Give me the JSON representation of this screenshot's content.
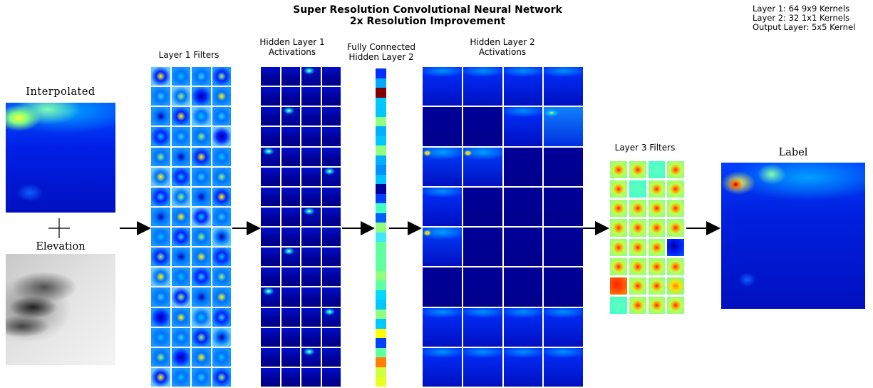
{
  "title": {
    "line1": "Super Resolution Convolutional Neural Network",
    "line2": "2x Resolution Improvement"
  },
  "legend": {
    "line1": "Layer 1: 64 9x9 Kernels",
    "line2": "Layer 2: 32 1x1 Kernels",
    "line3": "Output Layer: 5x5 Kernel"
  },
  "inputs": {
    "interpolated": "Interpolated",
    "plus": "+",
    "elevation": "Elevation"
  },
  "layers": {
    "layer1_filters": "Layer 1 Filters",
    "hidden1_line1": "Hidden Layer 1",
    "hidden1_line2": "Activations",
    "fc_line1": "Fully Connected",
    "fc_line2": "Hidden Layer 2",
    "hidden2_line1": "Hidden Layer 2",
    "hidden2_line2": "Activations",
    "layer3_filters": "Layer 3 Filters"
  },
  "output": {
    "label": "Label"
  },
  "colors": {
    "deep_blue": "#00008f",
    "blue": "#0020ff",
    "cyan": "#30d0ff",
    "green": "#90ff70",
    "yellow": "#ffff00",
    "orange": "#ff8000",
    "red": "#e02000",
    "dark_red": "#800000",
    "gray_light": "#f0f0f0",
    "gray_dark": "#303030"
  },
  "fc_strip_colors": [
    "#0030ff",
    "#00a8ff",
    "#800000",
    "#00c8ff",
    "#00c8ff",
    "#90ff80",
    "#00b0ff",
    "#00c8ff",
    "#90ff80",
    "#00b0ff",
    "#0090ff",
    "#00c0ff",
    "#0000a0",
    "#0040ff",
    "#40ffc0",
    "#0060ff",
    "#90ff80",
    "#40e8ff",
    "#60ffa0",
    "#60ffa0",
    "#60ffa0",
    "#90ff80",
    "#60ffa0",
    "#00d8ff",
    "#00c8ff",
    "#90ff80",
    "#00c8ff",
    "#ffff00",
    "#0040ff",
    "#60ffa0",
    "#ff8000",
    "#d0ff40",
    "#e8ff20"
  ]
}
